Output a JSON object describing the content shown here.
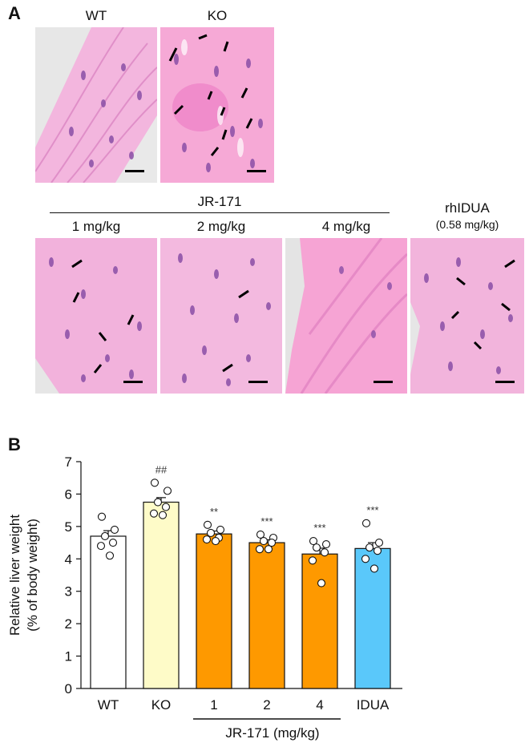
{
  "figure": {
    "panel_a": {
      "letter": "A",
      "top_labels": [
        "WT",
        "KO"
      ],
      "group_label": "JR-171",
      "dose_labels": [
        "1 mg/kg",
        "2 mg/kg",
        "4 mg/kg"
      ],
      "rh_label": "rhIDUA",
      "rh_sub": "(0.58 mg/kg)"
    },
    "panel_b": {
      "letter": "B",
      "group_label": "JR-171 (mg/kg)"
    }
  },
  "chart_data": {
    "type": "bar",
    "categories": [
      "WT",
      "KO",
      "1",
      "2",
      "4",
      "IDUA"
    ],
    "values": [
      4.7,
      5.75,
      4.77,
      4.5,
      4.15,
      4.32
    ],
    "errors": [
      0.17,
      0.14,
      0.09,
      0.09,
      0.18,
      0.18
    ],
    "points": [
      [
        5.3,
        4.9,
        4.7,
        4.5,
        4.4,
        4.1
      ],
      [
        6.35,
        6.1,
        5.75,
        5.6,
        5.4,
        5.35
      ],
      [
        5.05,
        4.9,
        4.8,
        4.65,
        4.6,
        4.55
      ],
      [
        4.75,
        4.65,
        4.55,
        4.5,
        4.3,
        4.3
      ],
      [
        4.55,
        4.45,
        4.35,
        4.2,
        3.95,
        3.25
      ],
      [
        5.1,
        4.5,
        4.35,
        4.25,
        4.0,
        3.7
      ]
    ],
    "significance": [
      "",
      "##",
      "**",
      "***",
      "***",
      "***"
    ],
    "colors": [
      "#ffffff",
      "#fefbc8",
      "#fe9900",
      "#fe9900",
      "#fe9900",
      "#5ac8fa"
    ],
    "ylabel_lines": [
      "Relative liver weight",
      "(% of  body weight)"
    ],
    "xlabel": "JR-171 (mg/kg)",
    "ylim": [
      0,
      7
    ],
    "yticks": [
      0,
      1,
      2,
      3,
      4,
      5,
      6,
      7
    ],
    "grid": false
  }
}
